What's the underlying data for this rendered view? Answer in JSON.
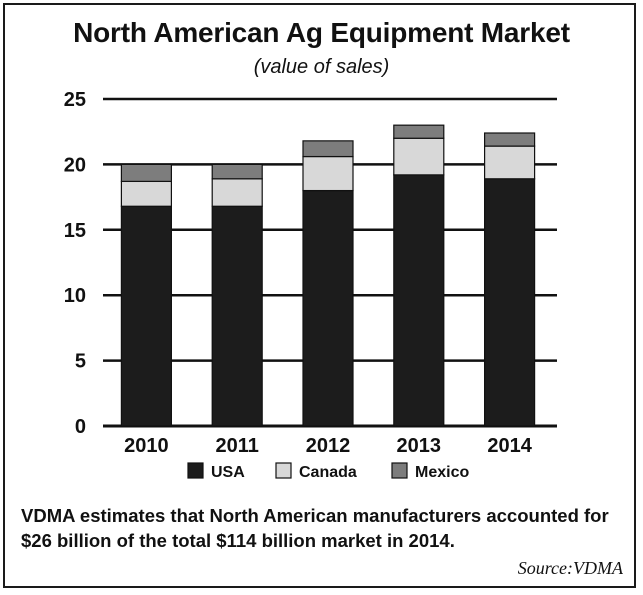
{
  "colors": {
    "usa": "#1c1c1c",
    "canada": "#d8d8d8",
    "mexico": "#7d7d7d",
    "ink": "#111111"
  },
  "chart_data": {
    "type": "bar",
    "stacked": true,
    "title": "North American Ag Equipment Market",
    "subtitle": "(value of sales)",
    "categories": [
      "2010",
      "2011",
      "2012",
      "2013",
      "2014"
    ],
    "series": [
      {
        "name": "USA",
        "values": [
          16.8,
          16.8,
          18.0,
          19.2,
          18.9
        ]
      },
      {
        "name": "Canada",
        "values": [
          1.9,
          2.1,
          2.6,
          2.8,
          2.5
        ]
      },
      {
        "name": "Mexico",
        "values": [
          1.3,
          1.1,
          1.2,
          1.0,
          1.0
        ]
      }
    ],
    "yticks": [
      "0",
      "5",
      "10",
      "15",
      "20",
      "25"
    ],
    "ylim": [
      0,
      25
    ],
    "grid": true,
    "legend_position": "bottom",
    "xlabel": "",
    "ylabel": ""
  },
  "caption": "VDMA estimates that North American manufacturers accounted for $26 billion of the total $114 billion market in 2014.",
  "source": "Source:VDMA"
}
